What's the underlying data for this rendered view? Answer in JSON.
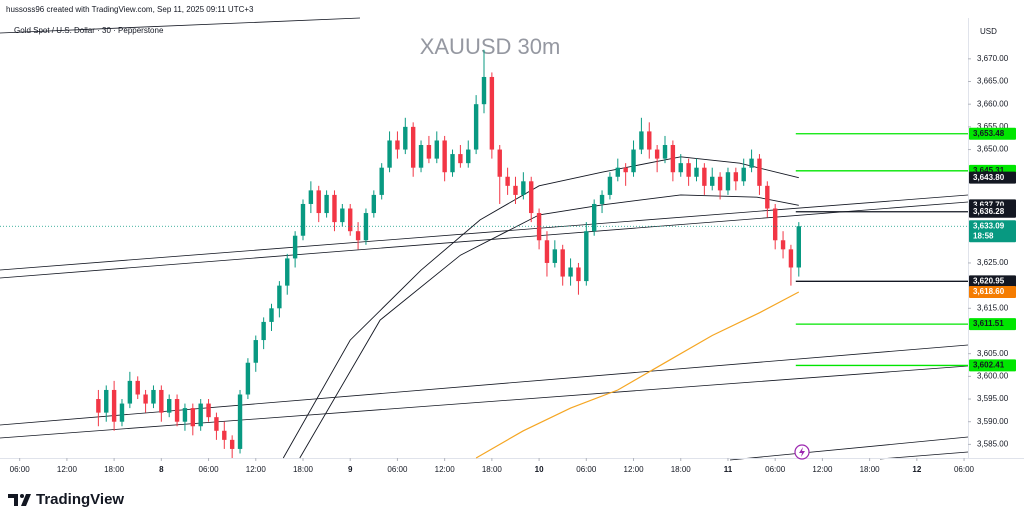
{
  "header": {
    "credit": "hussoss96 created with TradingView.com, Sep 11, 2025 09:11 UTC+3",
    "symbol": "Gold Spot / U.S. Dollar · 30 · Pepperstone",
    "watermark": "XAUUSD 30m",
    "currency": "USD",
    "brand": "TradingView"
  },
  "chart_data": {
    "type": "candlestick",
    "x": [
      10,
      11,
      12,
      13,
      14,
      15,
      16,
      17,
      18,
      19,
      20,
      21,
      22,
      23,
      24,
      25,
      26,
      27,
      28,
      29,
      30,
      31,
      32,
      33,
      34,
      35,
      36,
      37,
      38,
      39,
      40,
      41,
      42,
      43,
      44,
      45,
      46,
      47,
      48,
      49,
      50,
      51,
      52,
      53,
      54,
      55,
      56,
      57,
      58,
      59,
      60,
      61,
      62,
      63,
      64,
      65,
      66,
      67,
      68,
      69,
      70,
      71,
      72,
      73,
      74,
      75,
      76,
      77,
      78,
      79,
      80,
      81,
      82,
      83,
      84,
      85,
      86,
      87,
      88,
      89,
      90,
      91,
      92,
      93,
      94,
      95,
      96,
      97,
      98,
      99
    ],
    "candles": [
      [
        3595,
        3597,
        3589,
        3592
      ],
      [
        3592,
        3598,
        3590,
        3597
      ],
      [
        3597,
        3599,
        3588,
        3590
      ],
      [
        3590,
        3595,
        3589,
        3594
      ],
      [
        3594,
        3601,
        3593,
        3599
      ],
      [
        3599,
        3600,
        3595,
        3596
      ],
      [
        3596,
        3597,
        3592,
        3594
      ],
      [
        3594,
        3598,
        3593,
        3597
      ],
      [
        3597,
        3598,
        3590,
        3592
      ],
      [
        3592,
        3596,
        3591,
        3595
      ],
      [
        3595,
        3596,
        3589,
        3590
      ],
      [
        3590,
        3594,
        3588,
        3593
      ],
      [
        3593,
        3594,
        3587,
        3589
      ],
      [
        3589,
        3595,
        3588,
        3594
      ],
      [
        3594,
        3595,
        3590,
        3591
      ],
      [
        3591,
        3592,
        3586,
        3588
      ],
      [
        3588,
        3590,
        3584,
        3586
      ],
      [
        3586,
        3587,
        3582,
        3584
      ],
      [
        3584,
        3597,
        3583,
        3596
      ],
      [
        3596,
        3604,
        3595,
        3603
      ],
      [
        3603,
        3609,
        3601,
        3608
      ],
      [
        3608,
        3613,
        3606,
        3612
      ],
      [
        3612,
        3616,
        3610,
        3615
      ],
      [
        3615,
        3621,
        3613,
        3620
      ],
      [
        3620,
        3627,
        3618,
        3626
      ],
      [
        3626,
        3632,
        3624,
        3631
      ],
      [
        3631,
        3639,
        3630,
        3638
      ],
      [
        3638,
        3643,
        3636,
        3641
      ],
      [
        3641,
        3642,
        3634,
        3636
      ],
      [
        3636,
        3641,
        3635,
        3640
      ],
      [
        3640,
        3641,
        3632,
        3634
      ],
      [
        3634,
        3638,
        3633,
        3637
      ],
      [
        3637,
        3638,
        3631,
        3632
      ],
      [
        3632,
        3634,
        3628,
        3630
      ],
      [
        3630,
        3637,
        3629,
        3636
      ],
      [
        3636,
        3641,
        3635,
        3640
      ],
      [
        3640,
        3647,
        3639,
        3646
      ],
      [
        3646,
        3654,
        3645,
        3652
      ],
      [
        3652,
        3654,
        3648,
        3650
      ],
      [
        3650,
        3657,
        3649,
        3655
      ],
      [
        3655,
        3656,
        3644,
        3646
      ],
      [
        3646,
        3652,
        3645,
        3651
      ],
      [
        3651,
        3653,
        3647,
        3648
      ],
      [
        3648,
        3654,
        3647,
        3652
      ],
      [
        3652,
        3653,
        3643,
        3645
      ],
      [
        3645,
        3650,
        3644,
        3649
      ],
      [
        3649,
        3651,
        3646,
        3647
      ],
      [
        3647,
        3652,
        3646,
        3650
      ],
      [
        3650,
        3662,
        3649,
        3660
      ],
      [
        3660,
        3672,
        3658,
        3666
      ],
      [
        3666,
        3667,
        3648,
        3650
      ],
      [
        3650,
        3651,
        3638,
        3644
      ],
      [
        3644,
        3646,
        3640,
        3642
      ],
      [
        3642,
        3644,
        3638,
        3640
      ],
      [
        3640,
        3645,
        3639,
        3643
      ],
      [
        3643,
        3644,
        3634,
        3636
      ],
      [
        3636,
        3637,
        3628,
        3630
      ],
      [
        3630,
        3632,
        3622,
        3625
      ],
      [
        3625,
        3630,
        3624,
        3628
      ],
      [
        3628,
        3629,
        3620,
        3622
      ],
      [
        3622,
        3626,
        3620,
        3624
      ],
      [
        3624,
        3625,
        3618,
        3621
      ],
      [
        3621,
        3634,
        3620,
        3632
      ],
      [
        3632,
        3639,
        3631,
        3638
      ],
      [
        3638,
        3641,
        3636,
        3640
      ],
      [
        3640,
        3645,
        3639,
        3644
      ],
      [
        3644,
        3648,
        3643,
        3646
      ],
      [
        3646,
        3647,
        3642,
        3645
      ],
      [
        3645,
        3652,
        3644,
        3650
      ],
      [
        3650,
        3657,
        3649,
        3654
      ],
      [
        3654,
        3656,
        3648,
        3650
      ],
      [
        3650,
        3651,
        3645,
        3648
      ],
      [
        3648,
        3653,
        3647,
        3651
      ],
      [
        3651,
        3652,
        3643,
        3645
      ],
      [
        3645,
        3649,
        3644,
        3647
      ],
      [
        3647,
        3648,
        3642,
        3644
      ],
      [
        3644,
        3648,
        3643,
        3646
      ],
      [
        3646,
        3647,
        3640,
        3642
      ],
      [
        3642,
        3646,
        3641,
        3644
      ],
      [
        3644,
        3645,
        3639,
        3641
      ],
      [
        3641,
        3646,
        3640,
        3645
      ],
      [
        3645,
        3646,
        3641,
        3643
      ],
      [
        3643,
        3648,
        3642,
        3646
      ],
      [
        3646,
        3650,
        3645,
        3648
      ],
      [
        3648,
        3649,
        3640,
        3642
      ],
      [
        3642,
        3643,
        3635,
        3637
      ],
      [
        3637,
        3638,
        3628,
        3630
      ],
      [
        3630,
        3632,
        3626,
        3628
      ],
      [
        3628,
        3629,
        3620,
        3624
      ],
      [
        3624,
        3634,
        3622,
        3633.09
      ]
    ],
    "up_color": "#089981",
    "down_color": "#f23645",
    "xlim": [
      -2.5,
      120.5
    ],
    "xticks": [
      {
        "value": 0,
        "label": "06:00"
      },
      {
        "value": 6,
        "label": "12:00"
      },
      {
        "value": 12,
        "label": "18:00"
      },
      {
        "value": 18,
        "label": "8"
      },
      {
        "value": 24,
        "label": "06:00"
      },
      {
        "value": 30,
        "label": "12:00"
      },
      {
        "value": 36,
        "label": "18:00"
      },
      {
        "value": 42,
        "label": "9"
      },
      {
        "value": 48,
        "label": "06:00"
      },
      {
        "value": 54,
        "label": "12:00"
      },
      {
        "value": 60,
        "label": "18:00"
      },
      {
        "value": 66,
        "label": "10"
      },
      {
        "value": 72,
        "label": "06:00"
      },
      {
        "value": 78,
        "label": "12:00"
      },
      {
        "value": 84,
        "label": "18:00"
      },
      {
        "value": 90,
        "label": "11"
      },
      {
        "value": 96,
        "label": "06:00"
      },
      {
        "value": 102,
        "label": "12:00"
      },
      {
        "value": 108,
        "label": "18:00"
      },
      {
        "value": 114,
        "label": "12"
      },
      {
        "value": 120,
        "label": "06:00"
      }
    ],
    "ylim": [
      3582,
      3679
    ],
    "yticks": [
      {
        "value": 3670,
        "label": "3,670.00"
      },
      {
        "value": 3665,
        "label": "3,665.00"
      },
      {
        "value": 3660,
        "label": "3,660.00"
      },
      {
        "value": 3655,
        "label": "3,655.00"
      },
      {
        "value": 3650,
        "label": "3,650.00"
      },
      {
        "value": 3625,
        "label": "3,625.00"
      },
      {
        "value": 3615,
        "label": "3,615.00"
      },
      {
        "value": 3605,
        "label": "3,605.00"
      },
      {
        "value": 3600,
        "label": "3,600.00"
      },
      {
        "value": 3595,
        "label": "3,595.00"
      },
      {
        "value": 3590,
        "label": "3,590.00"
      },
      {
        "value": 3585,
        "label": "3,585.00"
      }
    ],
    "indicators": [
      {
        "color": "#f5a623",
        "x": [
          58,
          64,
          70,
          76,
          82,
          88,
          94,
          99
        ],
        "values": [
          3582,
          3588,
          3593,
          3597,
          3603,
          3609,
          3614,
          3618.6
        ]
      },
      {
        "color": "#131722",
        "x": [
          33.5,
          42,
          51,
          58.5,
          66,
          74,
          84,
          91.5,
          99
        ],
        "values": [
          3582,
          3608,
          3623.4,
          3634.5,
          3642,
          3645,
          3648.4,
          3647,
          3643.8
        ]
      },
      {
        "color": "#131722",
        "x": [
          35.6,
          45.8,
          56,
          66,
          74,
          84,
          93.7,
          99
        ],
        "values": [
          3582,
          3612.4,
          3626.7,
          3635.6,
          3637.8,
          3640,
          3639.5,
          3637.7
        ]
      }
    ],
    "levels": [
      {
        "value": 3653.48,
        "label": "3,653.48",
        "color": "#00e600",
        "text_color": "#131722",
        "line": "solid"
      },
      {
        "value": 3645.31,
        "label": "3,645.31",
        "color": "#00e600",
        "text_color": "#131722",
        "line": "solid"
      },
      {
        "value": 3643.8,
        "label": "3,643.80",
        "color": "#131722",
        "text_color": "#ffffff",
        "line": "none"
      },
      {
        "value": 3637.7,
        "label": "3,637.70",
        "color": "#131722",
        "text_color": "#ffffff",
        "line": "none"
      },
      {
        "value": 3636.28,
        "label": "3,636.28",
        "color": "#131722",
        "text_color": "#ffffff",
        "line": "solid"
      },
      {
        "value": 3633.09,
        "label": "3,633.09",
        "color": "#089981",
        "text_color": "#ffffff",
        "line": "dotted"
      },
      {
        "value": 3620.95,
        "label": "3,620.95",
        "color": "#131722",
        "text_color": "#ffffff",
        "line": "solid"
      },
      {
        "value": 3618.6,
        "label": "3,618.60",
        "color": "#f57c00",
        "text_color": "#ffffff",
        "line": "none"
      },
      {
        "value": 3611.51,
        "label": "3,611.51",
        "color": "#00e600",
        "text_color": "#131722",
        "line": "solid"
      },
      {
        "value": 3602.41,
        "label": "3,602.41",
        "color": "#00e600",
        "text_color": "#131722",
        "line": "solid"
      }
    ],
    "countdown": "18:58"
  }
}
